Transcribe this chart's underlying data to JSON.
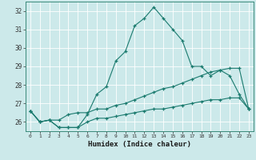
{
  "xlabel": "Humidex (Indice chaleur)",
  "ylabel": "",
  "background_color": "#cce9ea",
  "grid_color": "#ffffff",
  "line_color": "#1a7a6e",
  "xlim": [
    -0.5,
    23.5
  ],
  "ylim": [
    25.5,
    32.5
  ],
  "yticks": [
    26,
    27,
    28,
    29,
    30,
    31,
    32
  ],
  "xticks": [
    0,
    1,
    2,
    3,
    4,
    5,
    6,
    7,
    8,
    9,
    10,
    11,
    12,
    13,
    14,
    15,
    16,
    17,
    18,
    19,
    20,
    21,
    22,
    23
  ],
  "line1_x": [
    0,
    1,
    2,
    3,
    4,
    5,
    6,
    7,
    8,
    9,
    10,
    11,
    12,
    13,
    14,
    15,
    16,
    17,
    18,
    19,
    20,
    21,
    22,
    23
  ],
  "line1_y": [
    26.6,
    26.0,
    26.1,
    25.7,
    25.7,
    25.7,
    26.4,
    27.5,
    27.9,
    29.3,
    29.8,
    31.2,
    31.6,
    32.2,
    31.6,
    31.0,
    30.4,
    29.0,
    29.0,
    28.5,
    28.8,
    28.5,
    27.5,
    26.7
  ],
  "line2_x": [
    0,
    1,
    2,
    3,
    4,
    5,
    6,
    7,
    8,
    9,
    10,
    11,
    12,
    13,
    14,
    15,
    16,
    17,
    18,
    19,
    20,
    21,
    22,
    23
  ],
  "line2_y": [
    26.6,
    26.0,
    26.1,
    26.1,
    26.4,
    26.5,
    26.5,
    26.7,
    26.7,
    26.9,
    27.0,
    27.2,
    27.4,
    27.6,
    27.8,
    27.9,
    28.1,
    28.3,
    28.5,
    28.7,
    28.8,
    28.9,
    28.9,
    26.7
  ],
  "line3_x": [
    0,
    1,
    2,
    3,
    4,
    5,
    6,
    7,
    8,
    9,
    10,
    11,
    12,
    13,
    14,
    15,
    16,
    17,
    18,
    19,
    20,
    21,
    22,
    23
  ],
  "line3_y": [
    26.6,
    26.0,
    26.1,
    25.7,
    25.7,
    25.7,
    26.0,
    26.2,
    26.2,
    26.3,
    26.4,
    26.5,
    26.6,
    26.7,
    26.7,
    26.8,
    26.9,
    27.0,
    27.1,
    27.2,
    27.2,
    27.3,
    27.3,
    26.7
  ]
}
